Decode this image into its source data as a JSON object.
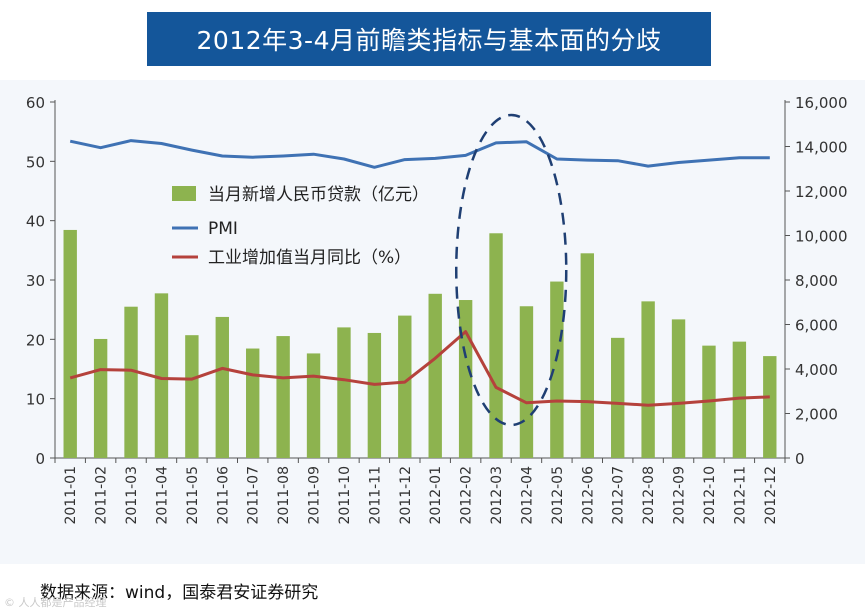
{
  "title": "2012年3-4月前瞻类指标与基本面的分歧",
  "source_text": "数据来源：wind，国泰君安证券研究",
  "watermark_text": "© 人人都是产品经理",
  "colors": {
    "banner": "#14569a",
    "bar": "#8db34f",
    "pmi": "#3f72b4",
    "industrial": "#b5423c",
    "ellipse": "#1f3f73"
  },
  "chart_data": {
    "type": "bar",
    "title": "2012年3-4月前瞻类指标与基本面的分歧",
    "categories": [
      "2011-01",
      "2011-02",
      "2011-03",
      "2011-04",
      "2011-05",
      "2011-06",
      "2011-07",
      "2011-08",
      "2011-09",
      "2011-10",
      "2011-11",
      "2011-12",
      "2012-01",
      "2012-02",
      "2012-03",
      "2012-04",
      "2012-05",
      "2012-06",
      "2012-07",
      "2012-08",
      "2012-09",
      "2012-10",
      "2012-11",
      "2012-12"
    ],
    "left_axis": {
      "min": 0,
      "max": 60,
      "ticks": [
        "0",
        "10",
        "20",
        "30",
        "40",
        "50",
        "60"
      ]
    },
    "right_axis": {
      "min": 0,
      "max": 16000,
      "ticks": [
        "0",
        "2,000",
        "4,000",
        "6,000",
        "8,000",
        "10,000",
        "12,000",
        "14,000",
        "16,000"
      ]
    },
    "series": [
      {
        "name": "当月新增人民币贷款（亿元）",
        "kind": "bar",
        "axis": "right",
        "values": [
          10250,
          5350,
          6800,
          7400,
          5520,
          6340,
          4920,
          5480,
          4700,
          5870,
          5620,
          6400,
          7380,
          7100,
          10100,
          6820,
          7930,
          9200,
          5400,
          7040,
          6230,
          5050,
          5230,
          4580
        ]
      },
      {
        "name": "PMI",
        "kind": "line",
        "axis": "left",
        "values": [
          53.4,
          52.3,
          53.5,
          53.0,
          51.9,
          50.9,
          50.7,
          50.9,
          51.2,
          50.4,
          49.0,
          50.3,
          50.5,
          51.0,
          53.1,
          53.3,
          50.4,
          50.2,
          50.1,
          49.2,
          49.8,
          50.2,
          50.6,
          50.6
        ]
      },
      {
        "name": "工业增加值当月同比（%）",
        "kind": "line",
        "axis": "left",
        "values": [
          13.5,
          14.9,
          14.8,
          13.4,
          13.3,
          15.1,
          14.0,
          13.5,
          13.8,
          13.2,
          12.4,
          12.8,
          16.8,
          21.3,
          11.9,
          9.3,
          9.6,
          9.5,
          9.2,
          8.9,
          9.2,
          9.6,
          10.1,
          10.3
        ]
      }
    ],
    "legend": {
      "position": "upper-center",
      "entries": [
        "当月新增人民币贷款（亿元）",
        "PMI",
        "工业增加值当月同比（%）"
      ]
    },
    "annotation": {
      "type": "dashed-ellipse",
      "covers": [
        "2012-03",
        "2012-04"
      ]
    }
  }
}
